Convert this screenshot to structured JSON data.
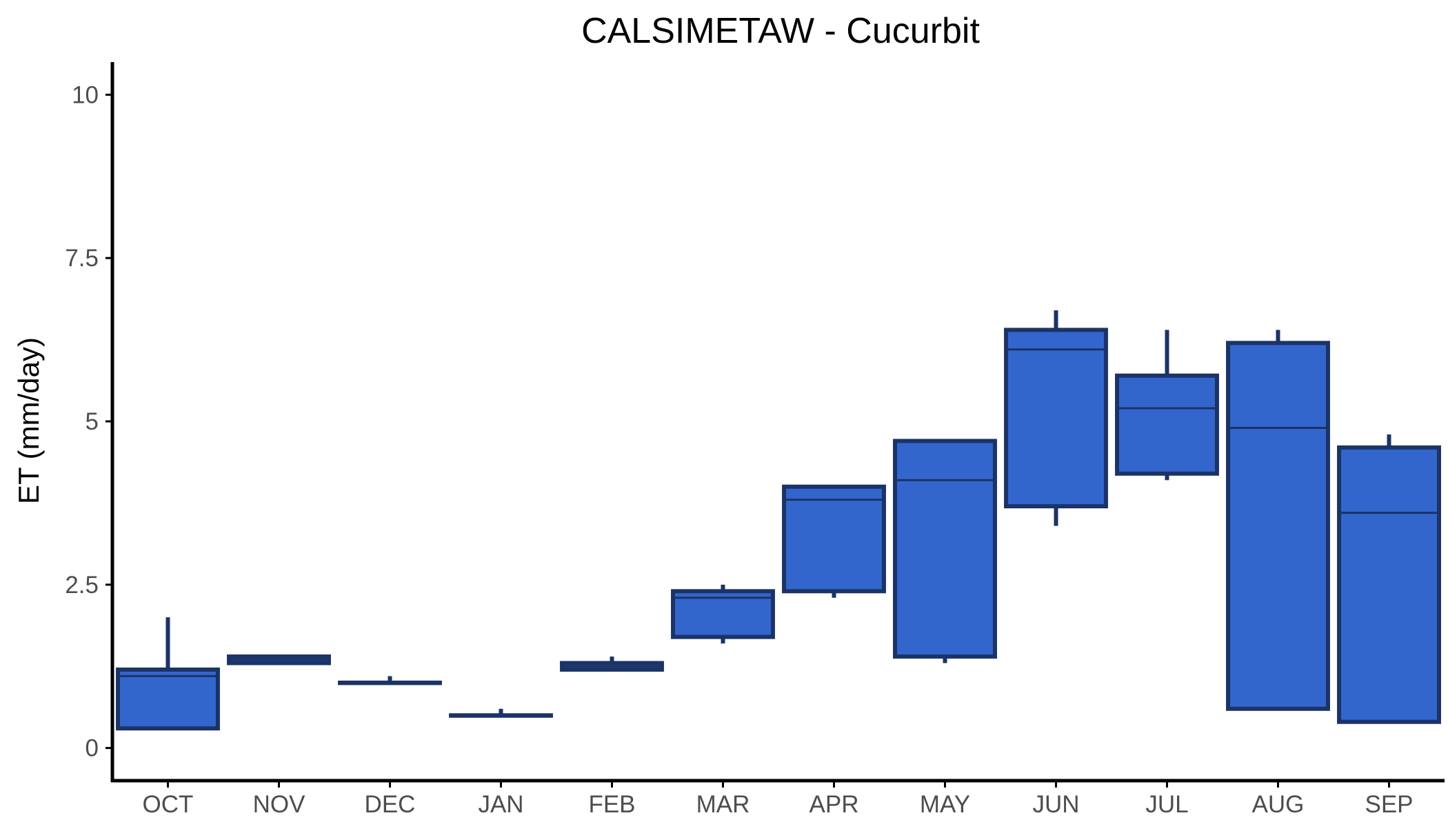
{
  "chart_data": {
    "type": "box",
    "title": "CALSIMETAW - Cucurbit",
    "xlabel": "",
    "ylabel": "ET (mm/day)",
    "ylim": [
      -0.5,
      10.5
    ],
    "yticks": [
      0,
      2.5,
      5,
      7.5,
      10
    ],
    "ytick_labels": [
      "0",
      "2.5",
      "5",
      "7.5",
      "10"
    ],
    "categories": [
      "OCT",
      "NOV",
      "DEC",
      "JAN",
      "FEB",
      "MAR",
      "APR",
      "MAY",
      "JUN",
      "JUL",
      "AUG",
      "SEP"
    ],
    "boxes": [
      {
        "min": 0.3,
        "q1": 0.3,
        "median": 1.1,
        "q3": 1.2,
        "max": 2.0
      },
      {
        "min": 1.3,
        "q1": 1.3,
        "median": 1.35,
        "q3": 1.4,
        "max": 1.4
      },
      {
        "min": 1.0,
        "q1": 1.0,
        "median": 1.0,
        "q3": 1.0,
        "max": 1.1
      },
      {
        "min": 0.5,
        "q1": 0.5,
        "median": 0.5,
        "q3": 0.5,
        "max": 0.6
      },
      {
        "min": 1.2,
        "q1": 1.2,
        "median": 1.25,
        "q3": 1.3,
        "max": 1.4
      },
      {
        "min": 1.6,
        "q1": 1.7,
        "median": 2.3,
        "q3": 2.4,
        "max": 2.5
      },
      {
        "min": 2.3,
        "q1": 2.4,
        "median": 3.8,
        "q3": 4.0,
        "max": 4.0
      },
      {
        "min": 1.3,
        "q1": 1.4,
        "median": 4.1,
        "q3": 4.7,
        "max": 4.7
      },
      {
        "min": 3.4,
        "q1": 3.7,
        "median": 6.1,
        "q3": 6.4,
        "max": 6.7
      },
      {
        "min": 4.1,
        "q1": 4.2,
        "median": 5.2,
        "q3": 5.7,
        "max": 6.4
      },
      {
        "min": 0.6,
        "q1": 0.6,
        "median": 4.9,
        "q3": 6.2,
        "max": 6.4
      },
      {
        "min": 0.4,
        "q1": 0.4,
        "median": 3.6,
        "q3": 4.6,
        "max": 4.8
      }
    ],
    "colors": {
      "box_fill": "#3366cc",
      "box_stroke": "#1b3366",
      "axis": "#000000",
      "tick_text": "#4d4d4d"
    },
    "grid": false,
    "legend": "none"
  }
}
